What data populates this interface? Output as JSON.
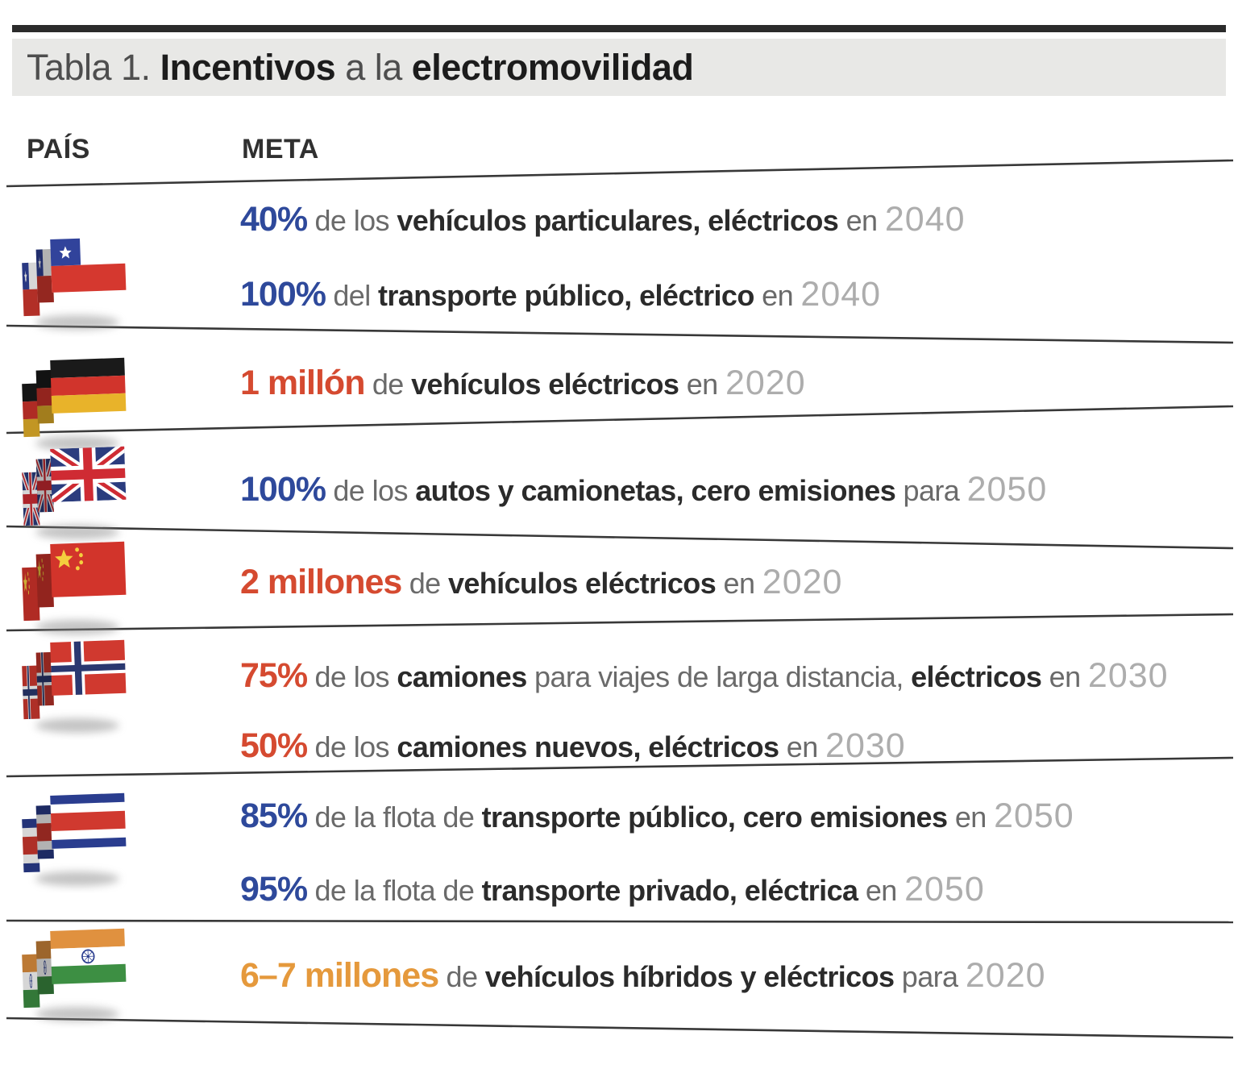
{
  "title": {
    "prefix": "Tabla 1. ",
    "bold1": "Incentivos",
    "mid": " a la ",
    "bold2": "electromovilidad"
  },
  "columns": {
    "country": "PAÍS",
    "goal": "META"
  },
  "colors": {
    "accent_blue": "#2e499b",
    "accent_red": "#d54a30",
    "accent_orange": "#e5993c",
    "body_bold": "#2b2b2b",
    "body_light": "#6a6a6a",
    "year_gray": "#adadad",
    "title_band_bg": "#e8e8e6",
    "rule_dark": "#383838"
  },
  "table": {
    "rows": [
      {
        "flag": "chile-flag-icon",
        "lines": [
          [
            {
              "t": "40%",
              "s": "num",
              "c": "blue"
            },
            {
              "t": "de los",
              "s": "light"
            },
            {
              "t": "vehículos particulares, eléctricos",
              "s": "bold"
            },
            {
              "t": "en",
              "s": "light"
            },
            {
              "t": "2040",
              "s": "year"
            }
          ],
          [
            {
              "t": "100%",
              "s": "num",
              "c": "blue"
            },
            {
              "t": " del",
              "s": "light"
            },
            {
              "t": "transporte público, eléctrico",
              "s": "bold"
            },
            {
              "t": "en",
              "s": "light"
            },
            {
              "t": "2040",
              "s": "year"
            }
          ]
        ]
      },
      {
        "flag": "germany-flag-icon",
        "lines": [
          [
            {
              "t": "1 millón",
              "s": "num",
              "c": "red"
            },
            {
              "t": "de",
              "s": "light"
            },
            {
              "t": "vehículos eléctricos",
              "s": "bold"
            },
            {
              "t": "en",
              "s": "light"
            },
            {
              "t": "2020",
              "s": "year"
            }
          ]
        ]
      },
      {
        "flag": "uk-flag-icon",
        "lines": [
          [
            {
              "t": "100%",
              "s": "num",
              "c": "blue"
            },
            {
              "t": "de los",
              "s": "light"
            },
            {
              "t": "autos y camionetas, cero emisiones",
              "s": "bold"
            },
            {
              "t": "para",
              "s": "light"
            },
            {
              "t": "2050",
              "s": "year"
            }
          ]
        ]
      },
      {
        "flag": "china-flag-icon",
        "lines": [
          [
            {
              "t": "2 millones",
              "s": "num",
              "c": "red"
            },
            {
              "t": "de",
              "s": "light"
            },
            {
              "t": "vehículos eléctricos",
              "s": "bold"
            },
            {
              "t": "en",
              "s": "light"
            },
            {
              "t": "2020",
              "s": "year"
            }
          ]
        ]
      },
      {
        "flag": "norway-flag-icon",
        "lines": [
          [
            {
              "t": "75%",
              "s": "num",
              "c": "red"
            },
            {
              "t": " de los",
              "s": "light"
            },
            {
              "t": "camiones",
              "s": "bold"
            },
            {
              "t": "para viajes de larga distancia,",
              "s": "light"
            },
            {
              "t": "eléctricos",
              "s": "bold"
            },
            {
              "t": "en",
              "s": "light"
            },
            {
              "t": "2030",
              "s": "year"
            }
          ],
          [
            {
              "t": "50%",
              "s": "num",
              "c": "red"
            },
            {
              "t": "de los",
              "s": "light"
            },
            {
              "t": "camiones nuevos, eléctricos",
              "s": "bold"
            },
            {
              "t": "en",
              "s": "light"
            },
            {
              "t": "2030",
              "s": "year"
            }
          ]
        ]
      },
      {
        "flag": "costa-rica-flag-icon",
        "lines": [
          [
            {
              "t": "85%",
              "s": "num",
              "c": "blue"
            },
            {
              "t": "de la flota de",
              "s": "light"
            },
            {
              "t": "transporte público, cero emisiones",
              "s": "bold"
            },
            {
              "t": "en",
              "s": "light"
            },
            {
              "t": "2050",
              "s": "year"
            }
          ],
          [
            {
              "t": "95%",
              "s": "num",
              "c": "blue"
            },
            {
              "t": "de la flota de",
              "s": "light"
            },
            {
              "t": "transporte privado, eléctrica",
              "s": "bold"
            },
            {
              "t": "en",
              "s": "light"
            },
            {
              "t": "2050",
              "s": "year"
            }
          ]
        ]
      },
      {
        "flag": "india-flag-icon",
        "lines": [
          [
            {
              "t": "6–7 millones",
              "s": "num",
              "c": "orange"
            },
            {
              "t": "de",
              "s": "light"
            },
            {
              "t": "vehículos híbridos y eléctricos",
              "s": "bold"
            },
            {
              "t": "para",
              "s": "light"
            },
            {
              "t": "2020",
              "s": "year"
            }
          ]
        ]
      }
    ]
  }
}
